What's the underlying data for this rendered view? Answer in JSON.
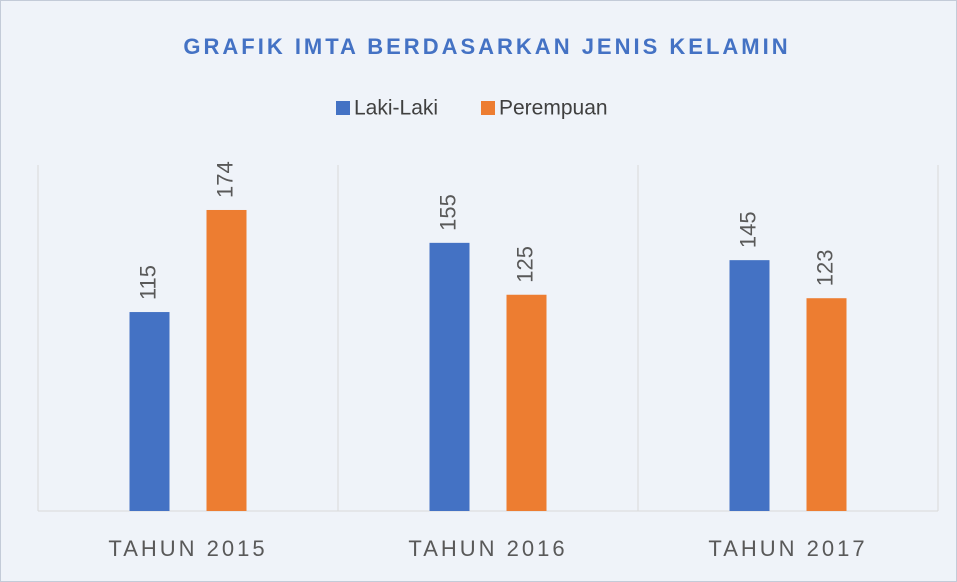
{
  "chart_data": {
    "type": "bar",
    "title": "GRAFIK IMTA BERDASARKAN JENIS KELAMIN",
    "categories": [
      "TAHUN 2015",
      "TAHUN 2016",
      "TAHUN 2017"
    ],
    "series": [
      {
        "name": "Laki-Laki",
        "color": "#4472c4",
        "values": [
          115,
          155,
          145
        ]
      },
      {
        "name": "Perempuan",
        "color": "#ed7d31",
        "values": [
          174,
          125,
          123
        ]
      }
    ],
    "ylim": [
      0,
      200
    ]
  }
}
